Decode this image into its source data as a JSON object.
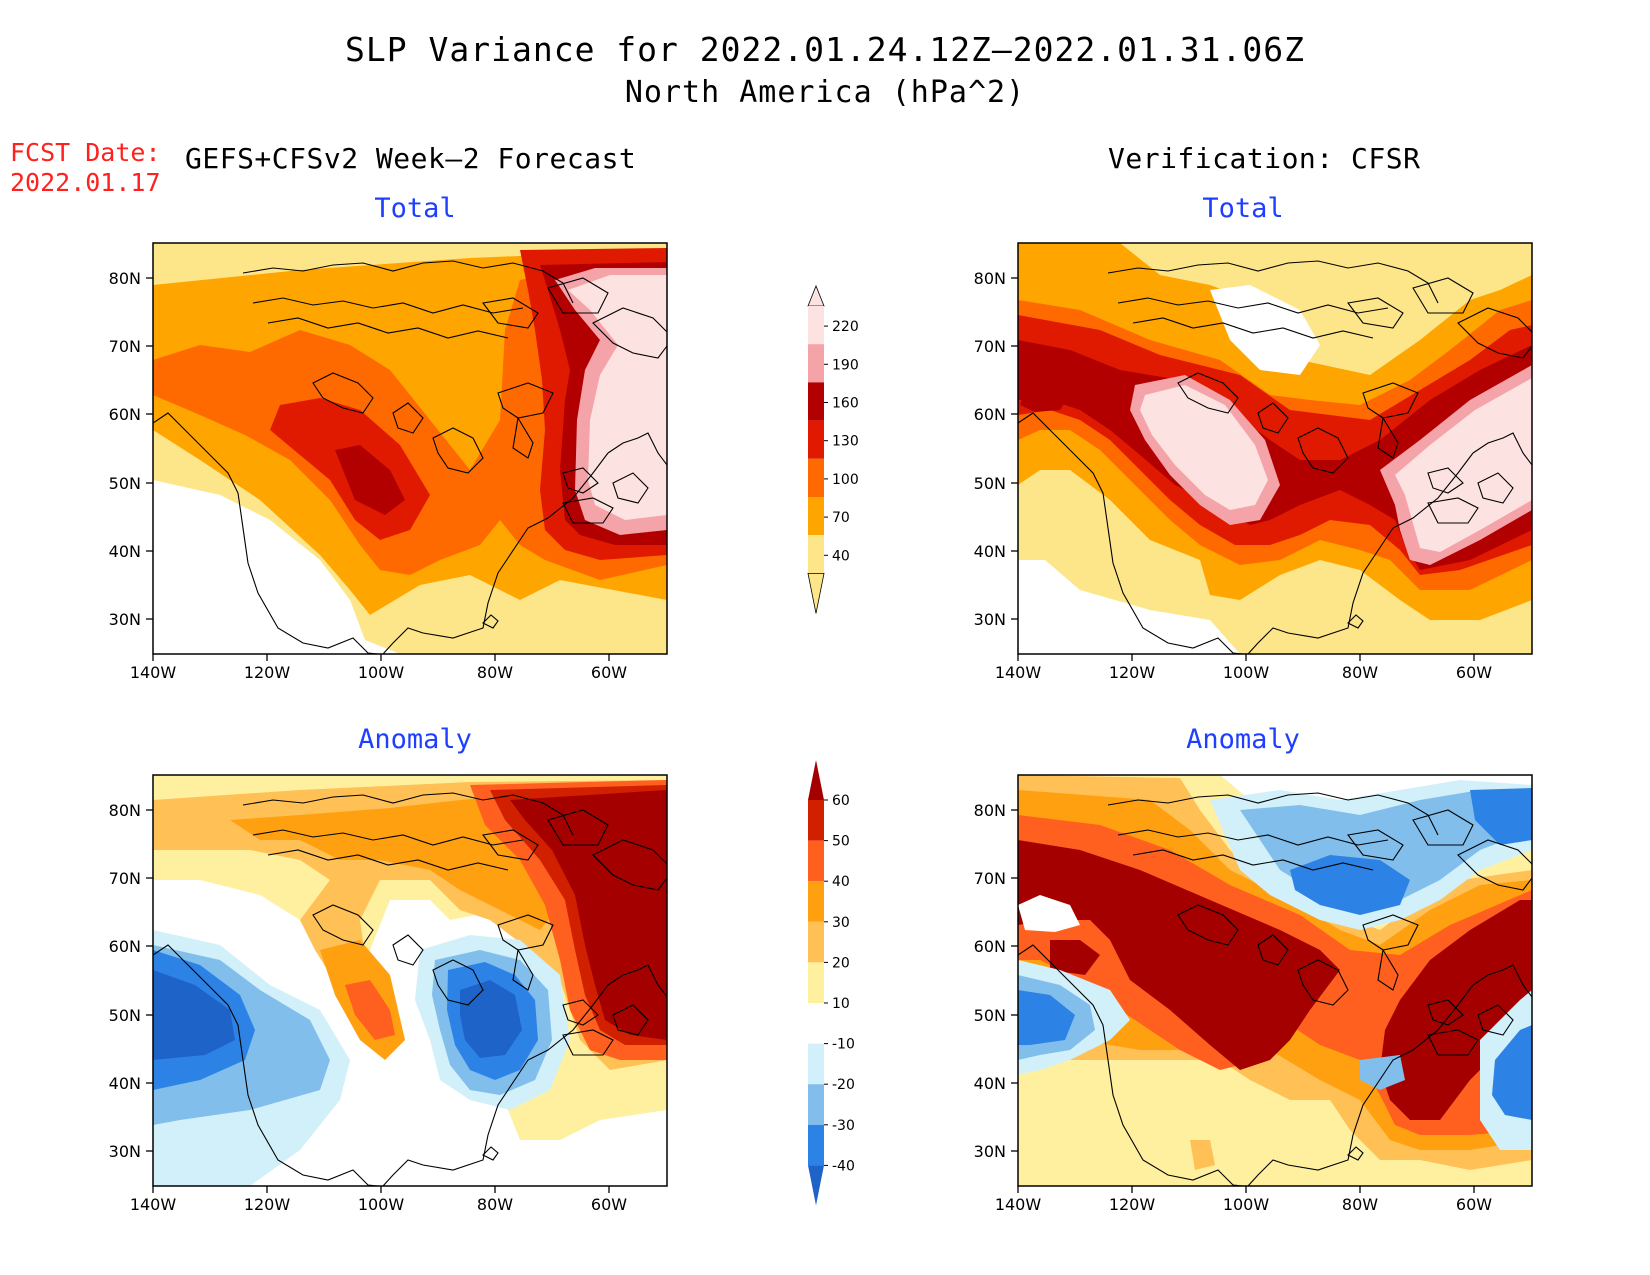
{
  "header": {
    "title_line1": "SLP Variance for 2022.01.24.12Z–2022.01.31.06Z",
    "title_line2": "North America (hPa^2)",
    "fcst_date_label": "FCST Date:",
    "fcst_date_value": "2022.01.17",
    "left_column_title": "GEFS+CFSv2 Week–2 Forecast",
    "right_column_title": "Verification: CFSR"
  },
  "panels": [
    {
      "id": "forecast-total",
      "title": "Total"
    },
    {
      "id": "verification-total",
      "title": "Total"
    },
    {
      "id": "forecast-anomaly",
      "title": "Anomaly"
    },
    {
      "id": "verification-anomaly",
      "title": "Anomaly"
    }
  ],
  "map_axes": {
    "lat_labels": [
      "80N",
      "70N",
      "60N",
      "50N",
      "40N",
      "30N"
    ],
    "lon_labels": [
      "140W",
      "120W",
      "100W",
      "80W",
      "60W"
    ]
  },
  "total_colorbar": {
    "labels": [
      "40",
      "70",
      "100",
      "130",
      "160",
      "190",
      "220"
    ],
    "colors": [
      "#fde68a",
      "#ffa500",
      "#ff6a00",
      "#e01a00",
      "#b20000",
      "#f4a3a8",
      "#fde2e2"
    ]
  },
  "anomaly_colorbar": {
    "labels": [
      "-40",
      "-30",
      "-20",
      "-10",
      "10",
      "20",
      "30",
      "40",
      "50",
      "60"
    ],
    "colors": [
      "#1e64c8",
      "#2d82e6",
      "#82beeb",
      "#d2f0fa",
      "#ffffff",
      "#fff0a0",
      "#ffc055",
      "#ffa010",
      "#ff6020",
      "#d02000",
      "#a50000"
    ]
  },
  "palette": {
    "total": [
      "#ffffff",
      "#fde68a",
      "#ffa500",
      "#ff6a00",
      "#e01a00",
      "#b20000",
      "#f4a3a8",
      "#fde2e2"
    ],
    "anomaly_neg": [
      "#d2f0fa",
      "#82beeb",
      "#2d82e6",
      "#1e64c8"
    ],
    "anomaly_pos": [
      "#fff0a0",
      "#ffc055",
      "#ffa010",
      "#ff6020",
      "#d02000",
      "#a50000"
    ]
  }
}
